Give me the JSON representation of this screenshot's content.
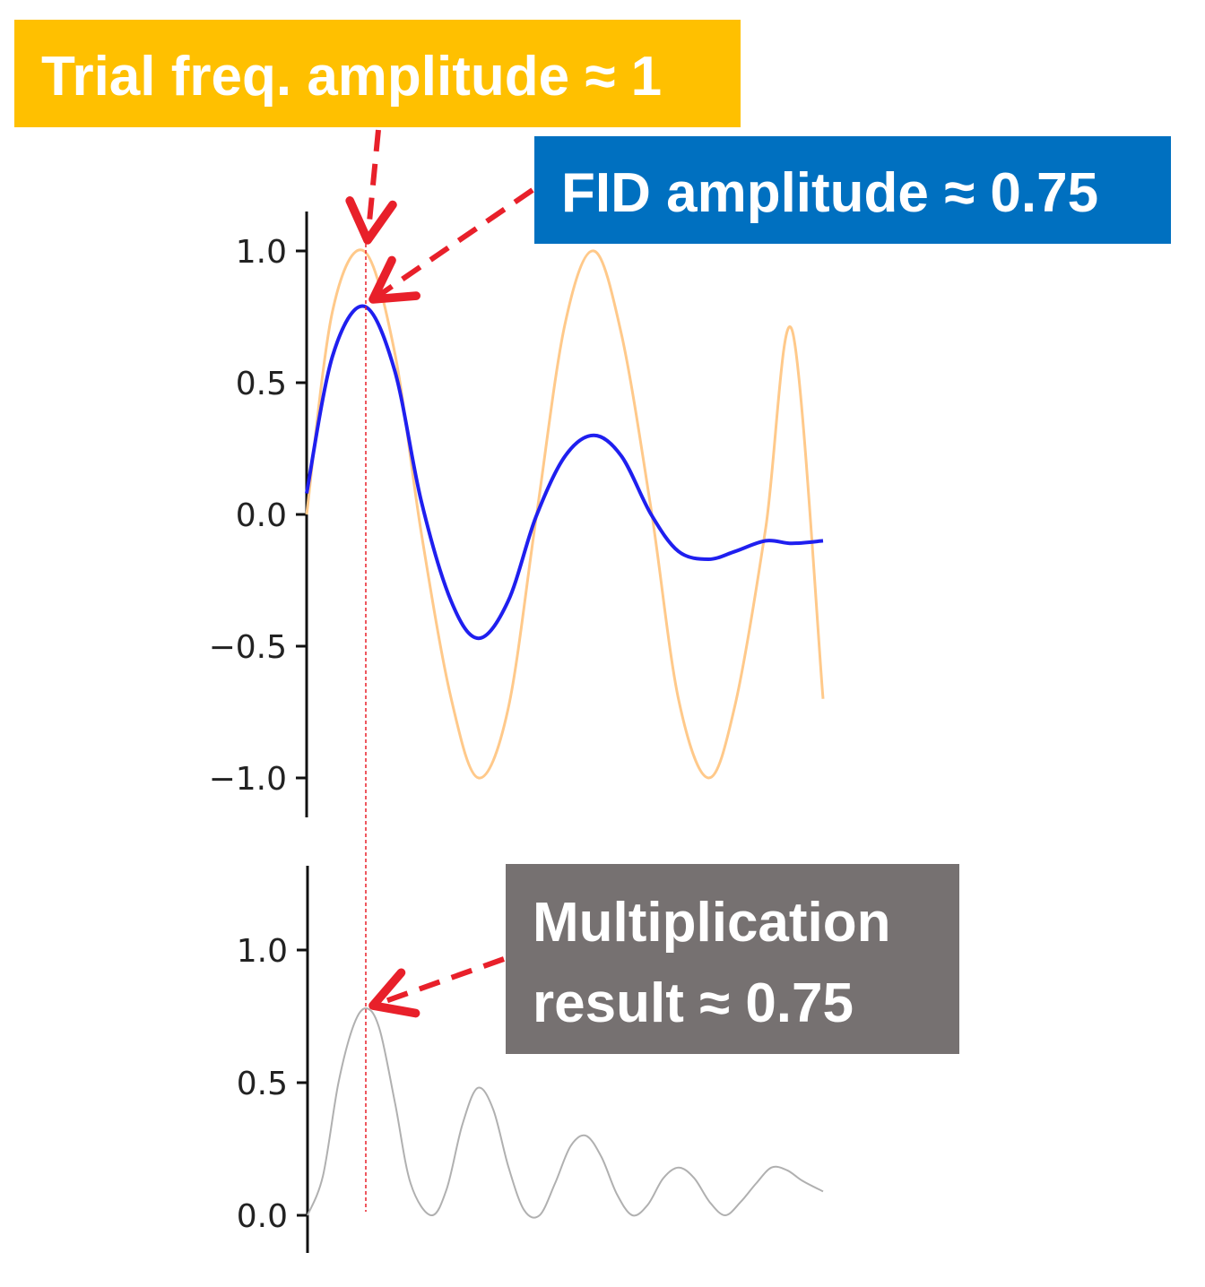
{
  "colors": {
    "trial": "#FFC98A",
    "fid": "#1F1FEF",
    "product": "#B0B0B0",
    "marker": "#E8202A",
    "callout_trial": "#FFC000",
    "callout_fid": "#0070C0",
    "callout_product": "#767171",
    "axis": "#111111"
  },
  "callouts": {
    "trial": "Trial freq. amplitude ≈ 1",
    "fid": "FID amplitude ≈ 0.75",
    "product_line1": "Multiplication",
    "product_line2": "result ≈ 0.75"
  },
  "chart_data": [
    {
      "type": "line",
      "title": "",
      "xlabel": "",
      "ylabel": "",
      "grid": false,
      "ylim": [
        -1.15,
        1.15
      ],
      "xlim": [
        0,
        1
      ],
      "yticks": [
        1.0,
        0.5,
        0.0,
        -0.5,
        -1.0
      ],
      "ytick_labels": [
        "1.0",
        "0.5",
        "0.0",
        "−0.5",
        "−1.0"
      ],
      "series": [
        {
          "color": "#FFC98A",
          "x": [
            0.0,
            0.05,
            0.111,
            0.17,
            0.222,
            0.28,
            0.333,
            0.39,
            0.444,
            0.5,
            0.556,
            0.61,
            0.667,
            0.72,
            0.778,
            0.83,
            0.889,
            0.94,
            1.0
          ],
          "y": [
            0.0,
            0.77,
            1.0,
            0.62,
            -0.07,
            -0.7,
            -1.0,
            -0.74,
            -0.02,
            0.72,
            1.0,
            0.68,
            0.02,
            -0.7,
            -1.0,
            -0.72,
            -0.05,
            0.7,
            -0.7
          ]
        },
        {
          "color": "#1F1FEF",
          "x": [
            0.0,
            0.05,
            0.111,
            0.17,
            0.222,
            0.28,
            0.333,
            0.39,
            0.444,
            0.5,
            0.556,
            0.61,
            0.667,
            0.72,
            0.778,
            0.83,
            0.889,
            0.94,
            1.0
          ],
          "y": [
            0.08,
            0.6,
            0.79,
            0.55,
            0.05,
            -0.33,
            -0.47,
            -0.33,
            -0.01,
            0.22,
            0.3,
            0.22,
            0.0,
            -0.14,
            -0.17,
            -0.14,
            -0.1,
            -0.11,
            -0.1
          ]
        }
      ]
    },
    {
      "type": "line",
      "title": "",
      "xlabel": "",
      "ylabel": "",
      "grid": false,
      "ylim": [
        -0.13,
        1.3
      ],
      "xlim": [
        0,
        1
      ],
      "yticks": [
        1.0,
        0.5,
        0.0
      ],
      "ytick_labels": [
        "1.0",
        "0.5",
        "0.0"
      ],
      "series": [
        {
          "color": "#B0B0B0",
          "x": [
            0.0,
            0.03,
            0.06,
            0.09,
            0.115,
            0.14,
            0.17,
            0.2,
            0.24,
            0.27,
            0.3,
            0.33,
            0.36,
            0.39,
            0.42,
            0.45,
            0.48,
            0.51,
            0.54,
            0.57,
            0.6,
            0.63,
            0.66,
            0.69,
            0.72,
            0.75,
            0.78,
            0.81,
            0.84,
            0.87,
            0.9,
            0.93,
            0.96,
            1.0
          ],
          "y": [
            0.0,
            0.15,
            0.5,
            0.72,
            0.78,
            0.7,
            0.42,
            0.12,
            0.0,
            0.1,
            0.34,
            0.48,
            0.4,
            0.18,
            0.02,
            0.0,
            0.12,
            0.26,
            0.3,
            0.22,
            0.08,
            0.0,
            0.04,
            0.14,
            0.18,
            0.14,
            0.05,
            0.0,
            0.05,
            0.12,
            0.18,
            0.17,
            0.13,
            0.09
          ]
        }
      ]
    }
  ]
}
